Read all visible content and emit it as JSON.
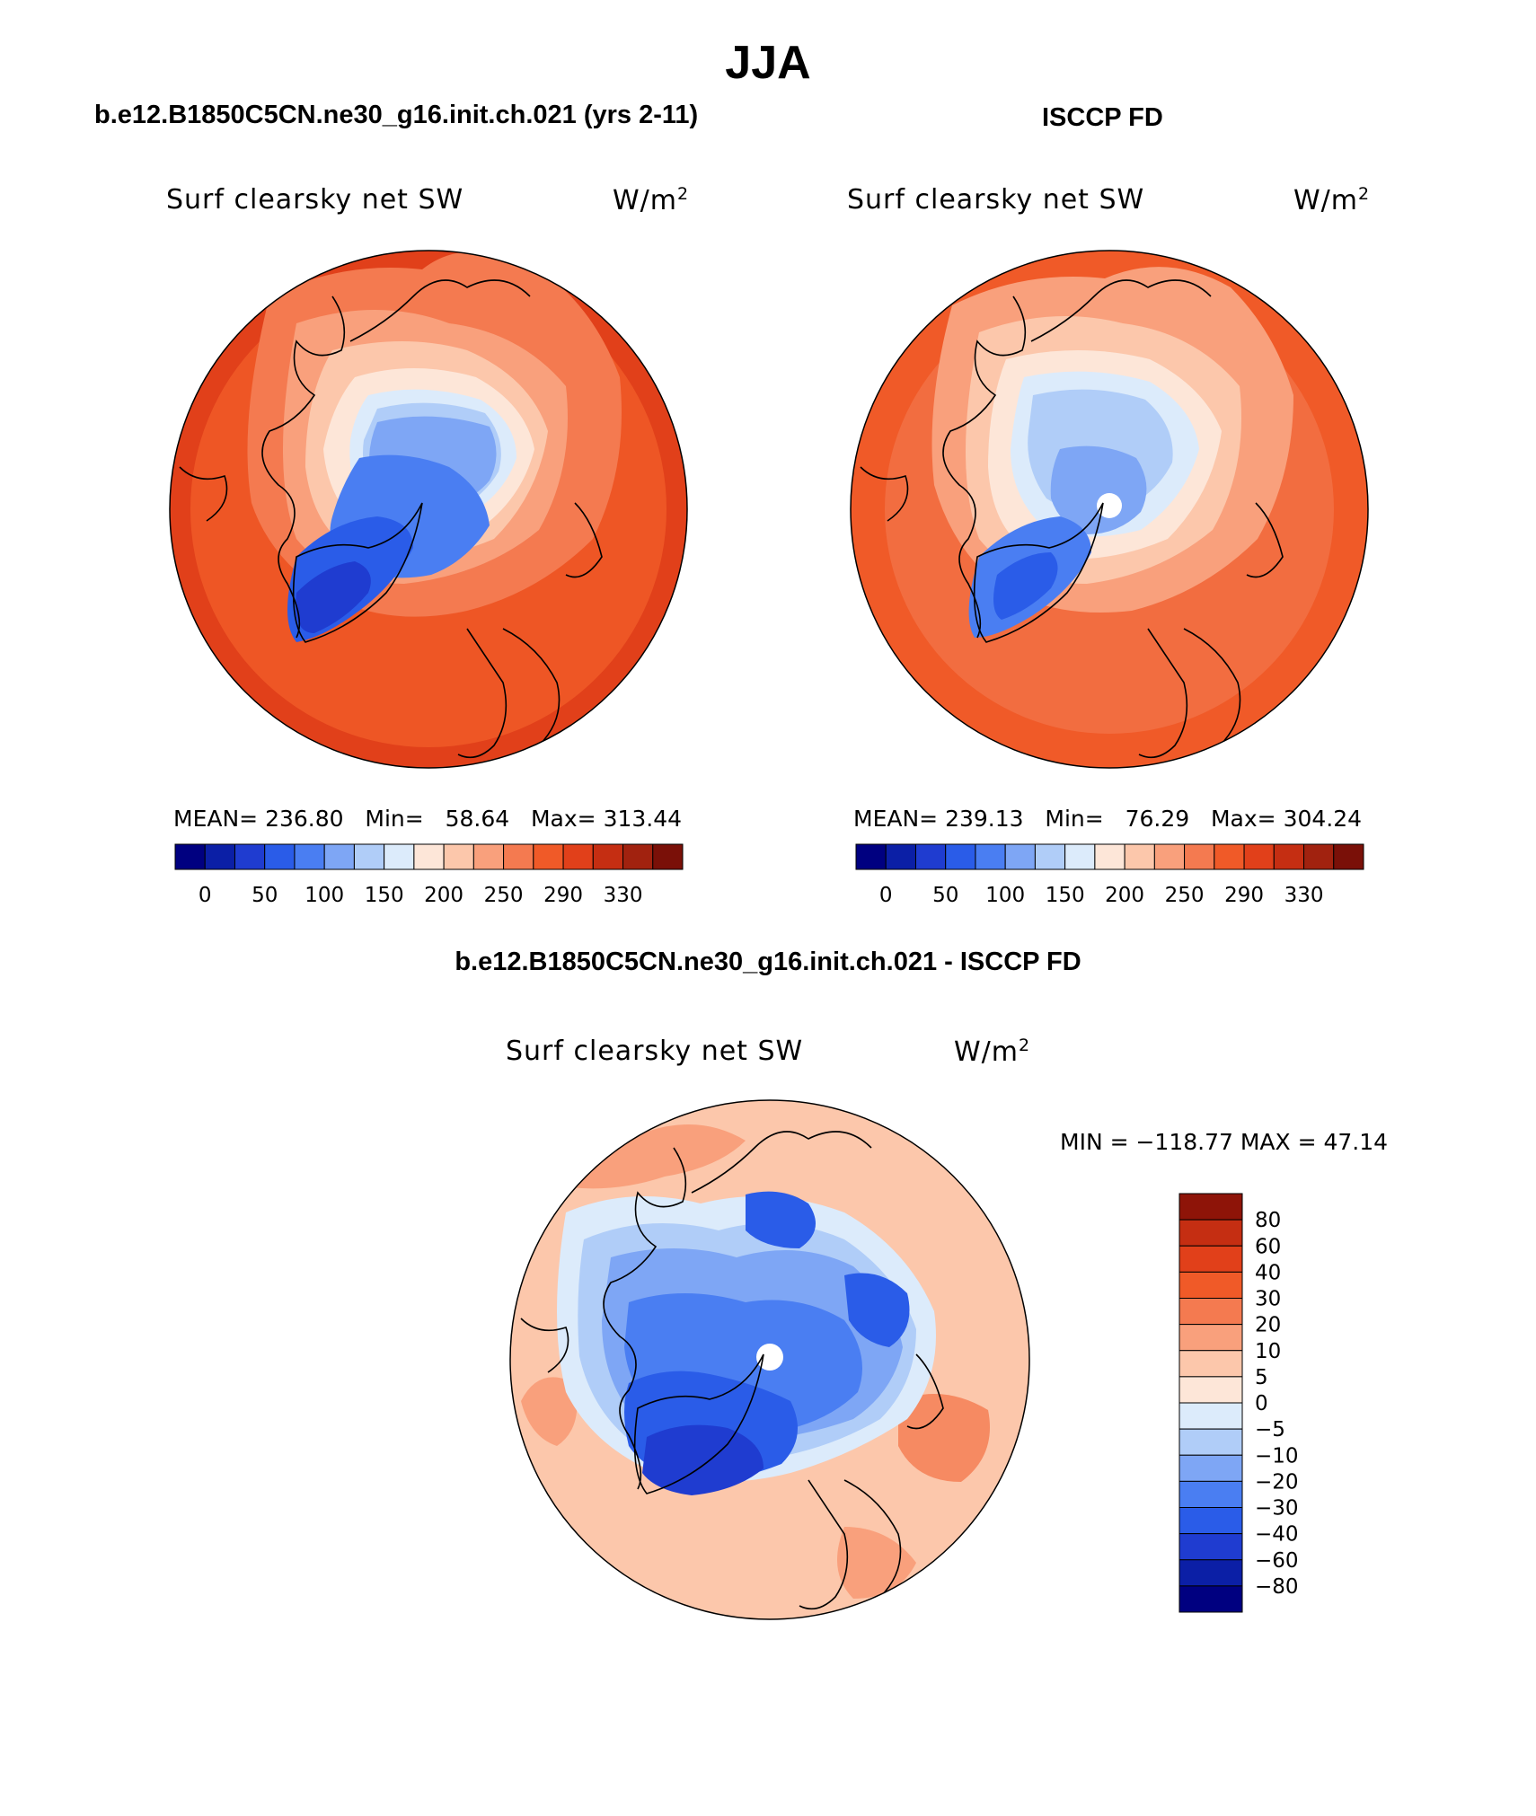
{
  "figure": {
    "title": "JJA",
    "left_heading": "b.e12.B1850C5CN.ne30_g16.init.ch.021 (yrs 2-11)",
    "right_heading": "ISCCP FD",
    "bottom_heading": "b.e12.B1850C5CN.ne30_g16.init.ch.021 - ISCCP FD"
  },
  "panels": [
    {
      "id": "model",
      "variable": "Surf clearsky net SW",
      "units_base": "W/m",
      "units_exp": "2",
      "stats": {
        "mean_label": "MEAN=",
        "mean": "236.80",
        "min_label": "Min=",
        "min": "58.64",
        "max_label": "Max=",
        "max": "313.44"
      }
    },
    {
      "id": "obs",
      "variable": "Surf clearsky net SW",
      "units_base": "W/m",
      "units_exp": "2",
      "stats": {
        "mean_label": "MEAN=",
        "mean": "239.13",
        "min_label": "Min=",
        "min": "76.29",
        "max_label": "Max=",
        "max": "304.24"
      }
    },
    {
      "id": "diff",
      "variable": "Surf clearsky net SW",
      "units_base": "W/m",
      "units_exp": "2",
      "stats_text": "MIN = −118.77 MAX =   47.14"
    }
  ],
  "colorbar_abs": {
    "colors": [
      "#000080",
      "#0b1fa6",
      "#1f3cd0",
      "#2a5ce8",
      "#4a7ef2",
      "#7ea6f5",
      "#b0cdf8",
      "#dcebfb",
      "#fde6d8",
      "#fcc7ab",
      "#f9a07c",
      "#f47a50",
      "#f05a28",
      "#e1401a",
      "#c52e12",
      "#a1220f",
      "#7a1008"
    ],
    "tick_labels": [
      "0",
      "50",
      "100",
      "150",
      "200",
      "250",
      "290",
      "330"
    ]
  },
  "colorbar_diff": {
    "colors": [
      "#000080",
      "#0b1fa6",
      "#1f3cd0",
      "#2a5ce8",
      "#4a7ef2",
      "#7ea6f5",
      "#b0cdf8",
      "#dcebfb",
      "#fde6d8",
      "#fcc7ab",
      "#f9a07c",
      "#f47a50",
      "#f05a28",
      "#e1401a",
      "#c52e12",
      "#8e1408"
    ],
    "tick_labels": [
      "80",
      "60",
      "40",
      "30",
      "20",
      "10",
      "5",
      "0",
      "−5",
      "−10",
      "−20",
      "−30",
      "−40",
      "−60",
      "−80"
    ]
  }
}
